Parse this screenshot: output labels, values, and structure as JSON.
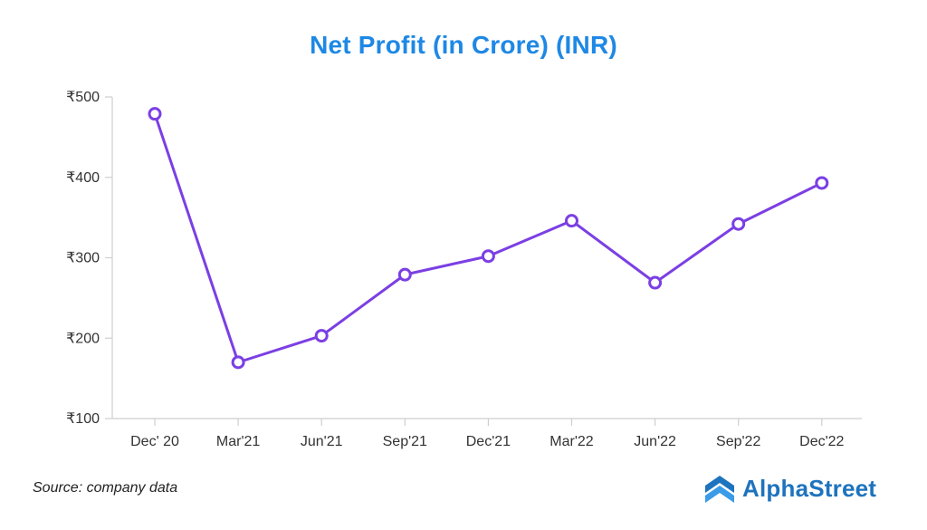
{
  "chart_data": {
    "type": "line",
    "title": "Net Profit (in Crore) (INR)",
    "xlabel": "",
    "ylabel": "",
    "categories": [
      "Dec' 20",
      "Mar'21",
      "Jun'21",
      "Sep'21",
      "Dec'21",
      "Mar'22",
      "Jun'22",
      "Sep'22",
      "Dec'22"
    ],
    "series": [
      {
        "values": [
          479,
          170,
          203,
          279,
          302,
          346,
          269,
          342,
          393
        ]
      }
    ],
    "ylim": [
      100,
      500
    ],
    "yticks": [
      100,
      200,
      300,
      400,
      500
    ],
    "ytick_labels": [
      "₹100",
      "₹200",
      "₹300",
      "₹400",
      "₹500"
    ],
    "grid": false,
    "line_color": "#7b3fe4"
  },
  "footer": {
    "source": "Source: company data",
    "brand_name": "AlphaStreet",
    "brand_icon": "alphastreet-logo-icon",
    "brand_color": "#1e73be"
  }
}
